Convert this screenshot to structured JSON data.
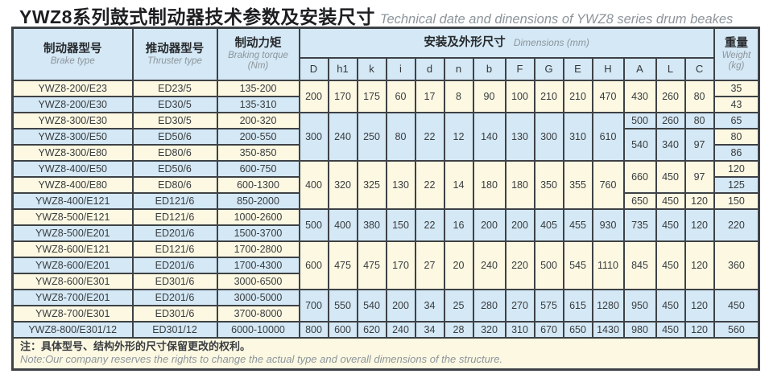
{
  "title": {
    "zh": "YWZ8系列鼓式制动器技术参数及安装尺寸",
    "en": "Technical date and dinensions of YWZ8 series drum beakes"
  },
  "colors": {
    "cream": "#fcf8e2",
    "blue": "#d4e8f5",
    "border": "#3e4246",
    "title_en_gray": "#8d959b"
  },
  "header": {
    "brake": {
      "zh": "制动器型号",
      "en": "Brake type"
    },
    "thruster": {
      "zh": "推动器型号",
      "en": "Thruster type"
    },
    "torque": {
      "zh": "制动力矩",
      "en": "Braking torque",
      "unit": "(Nm)"
    },
    "dimensions": {
      "zh": "安装及外形尺寸",
      "en": "Dimensions (mm)"
    },
    "dim_cols": [
      "D",
      "h1",
      "k",
      "i",
      "d",
      "n",
      "b",
      "F",
      "G",
      "E",
      "H",
      "A",
      "L",
      "C"
    ],
    "weight": {
      "zh": "重量",
      "en": "Weight",
      "unit": "(kg)"
    }
  },
  "groups": [
    {
      "tone": "cream",
      "dims": [
        "200",
        "170",
        "175",
        "60",
        "17",
        "8",
        "90",
        "100",
        "210",
        "210",
        "470"
      ],
      "alc": [
        {
          "span": 2,
          "A": "430",
          "L": "260",
          "C": "80"
        }
      ],
      "weights": [
        {
          "span": 1,
          "v": "35",
          "tone": "cream"
        },
        {
          "span": 1,
          "v": "43",
          "tone": "cream"
        }
      ],
      "rows": [
        {
          "brake": "YWZ8-200/E23",
          "thruster": "ED23/5",
          "torque": "135-200",
          "tone": "cream"
        },
        {
          "brake": "YWZ8-200/E30",
          "thruster": "ED30/5",
          "torque": "135-310",
          "tone": "blue"
        }
      ]
    },
    {
      "tone": "blue",
      "dims": [
        "300",
        "240",
        "250",
        "80",
        "22",
        "12",
        "140",
        "130",
        "300",
        "310",
        "610"
      ],
      "alc": [
        {
          "span": 1,
          "A": "500",
          "L": "260",
          "C": "80"
        },
        {
          "span": 2,
          "A": "540",
          "L": "340",
          "C": "97"
        }
      ],
      "weights": [
        {
          "span": 1,
          "v": "65",
          "tone": "blue"
        },
        {
          "span": 1,
          "v": "80",
          "tone": "cream"
        },
        {
          "span": 1,
          "v": "86",
          "tone": "blue"
        }
      ],
      "rows": [
        {
          "brake": "YWZ8-300/E30",
          "thruster": "ED30/5",
          "torque": "200-320",
          "tone": "cream"
        },
        {
          "brake": "YWZ8-300/E50",
          "thruster": "ED50/6",
          "torque": "200-550",
          "tone": "blue"
        },
        {
          "brake": "YWZ8-300/E80",
          "thruster": "ED80/6",
          "torque": "350-850",
          "tone": "cream"
        }
      ]
    },
    {
      "tone": "cream",
      "dims": [
        "400",
        "320",
        "325",
        "130",
        "22",
        "14",
        "180",
        "180",
        "350",
        "355",
        "760"
      ],
      "alc": [
        {
          "span": 2,
          "A": "660",
          "L": "450",
          "C": "97"
        },
        {
          "span": 1,
          "A": "650",
          "L": "450",
          "C": "120"
        }
      ],
      "weights": [
        {
          "span": 1,
          "v": "120",
          "tone": "cream"
        },
        {
          "span": 1,
          "v": "125",
          "tone": "blue"
        },
        {
          "span": 1,
          "v": "150",
          "tone": "cream"
        }
      ],
      "rows": [
        {
          "brake": "YWZ8-400/E50",
          "thruster": "ED50/6",
          "torque": "600-750",
          "tone": "blue"
        },
        {
          "brake": "YWZ8-400/E80",
          "thruster": "ED80/6",
          "torque": "600-1300",
          "tone": "cream"
        },
        {
          "brake": "YWZ8-400/E121",
          "thruster": "ED121/6",
          "torque": "850-2000",
          "tone": "blue"
        }
      ]
    },
    {
      "tone": "blue",
      "dims": [
        "500",
        "400",
        "380",
        "150",
        "22",
        "16",
        "200",
        "200",
        "405",
        "455",
        "930"
      ],
      "alc": [
        {
          "span": 2,
          "A": "735",
          "L": "450",
          "C": "120"
        }
      ],
      "weights": [
        {
          "span": 2,
          "v": "220",
          "tone": "blue"
        }
      ],
      "rows": [
        {
          "brake": "YWZ8-500/E121",
          "thruster": "ED121/6",
          "torque": "1000-2600",
          "tone": "cream"
        },
        {
          "brake": "YWZ8-500/E201",
          "thruster": "ED201/6",
          "torque": "1500-3700",
          "tone": "blue"
        }
      ]
    },
    {
      "tone": "cream",
      "dims": [
        "600",
        "475",
        "475",
        "170",
        "27",
        "20",
        "240",
        "220",
        "500",
        "545",
        "1110"
      ],
      "alc": [
        {
          "span": 3,
          "A": "845",
          "L": "450",
          "C": "120"
        }
      ],
      "weights": [
        {
          "span": 3,
          "v": "360",
          "tone": "cream"
        }
      ],
      "rows": [
        {
          "brake": "YWZ8-600/E121",
          "thruster": "ED121/6",
          "torque": "1700-2800",
          "tone": "cream"
        },
        {
          "brake": "YWZ8-600/E201",
          "thruster": "ED201/6",
          "torque": "1700-4300",
          "tone": "blue"
        },
        {
          "brake": "YWZ8-600/E301",
          "thruster": "ED301/6",
          "torque": "3000-6500",
          "tone": "cream"
        }
      ]
    },
    {
      "tone": "blue",
      "dims": [
        "700",
        "550",
        "540",
        "200",
        "34",
        "25",
        "280",
        "270",
        "575",
        "615",
        "1280"
      ],
      "alc": [
        {
          "span": 2,
          "A": "950",
          "L": "450",
          "C": "120"
        }
      ],
      "weights": [
        {
          "span": 2,
          "v": "450",
          "tone": "blue"
        }
      ],
      "rows": [
        {
          "brake": "YWZ8-700/E201",
          "thruster": "ED201/6",
          "torque": "3000-5000",
          "tone": "blue"
        },
        {
          "brake": "YWZ8-700/E301",
          "thruster": "ED301/6",
          "torque": "3700-8000",
          "tone": "cream"
        }
      ]
    },
    {
      "tone": "blue",
      "dims": [
        "800",
        "600",
        "620",
        "240",
        "34",
        "28",
        "320",
        "310",
        "670",
        "650",
        "1430"
      ],
      "alc": [
        {
          "span": 1,
          "A": "980",
          "L": "450",
          "C": "120"
        }
      ],
      "weights": [
        {
          "span": 1,
          "v": "560",
          "tone": "blue"
        }
      ],
      "rows": [
        {
          "brake": "YWZ8-800/E301/12",
          "thruster": "ED301/12",
          "torque": "6000-10000",
          "tone": "blue"
        }
      ]
    }
  ],
  "note": {
    "zh": "注：具体型号、结构外形的尺寸保留更改的权利。",
    "en": "Note:Our company reserves the rights to change the actual type and overall dimensions of the structure."
  }
}
